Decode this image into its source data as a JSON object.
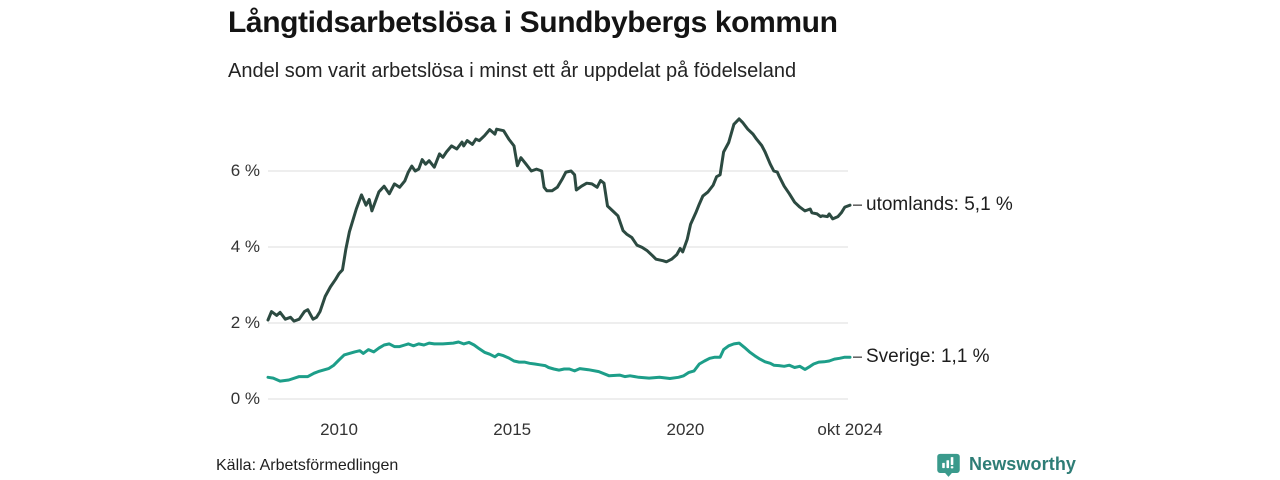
{
  "header": {
    "title": "Långtidsarbetslösa i Sundbybergs kommun",
    "subtitle": "Andel som varit arbetslösa i minst ett år uppdelat på födelseland"
  },
  "footer": {
    "source": "Källa: Arbetsförmedlingen",
    "branding": {
      "name": "Newsworthy",
      "icon": "bar-chart-bubble-icon",
      "icon_color": "#3a9a8c",
      "text_color": "#2e7d76"
    }
  },
  "chart_data": {
    "type": "line",
    "title": "Långtidsarbetslösa i Sundbybergs kommun",
    "subtitle": "Andel som varit arbetslösa i minst ett år uppdelat på födelseland",
    "unit": "%",
    "grid": true,
    "grid_color": "#e4e4e4",
    "xlim": [
      2007.95,
      2024.75
    ],
    "ylim": [
      0,
      7.6
    ],
    "y_ticks": [
      {
        "value": 0,
        "label": "0 %"
      },
      {
        "value": 2,
        "label": "2 %"
      },
      {
        "value": 4,
        "label": "4 %"
      },
      {
        "value": 6,
        "label": "6 %"
      }
    ],
    "x_ticks": [
      {
        "value": 2010,
        "label": "2010"
      },
      {
        "value": 2015,
        "label": "2015"
      },
      {
        "value": 2020,
        "label": "2020"
      },
      {
        "value": 2024.75,
        "label": "okt 2024"
      }
    ],
    "end_dash_color": "#666666",
    "legend_position": "line-end-right",
    "series": [
      {
        "name": "utomlands",
        "end_label": "utomlands: 5,1 %",
        "end_value": "5,1 %",
        "color": "#2c4a41",
        "points": [
          [
            2007.95,
            2.08
          ],
          [
            2008.05,
            2.3
          ],
          [
            2008.2,
            2.2
          ],
          [
            2008.3,
            2.28
          ],
          [
            2008.45,
            2.1
          ],
          [
            2008.6,
            2.15
          ],
          [
            2008.7,
            2.05
          ],
          [
            2008.85,
            2.1
          ],
          [
            2009.0,
            2.3
          ],
          [
            2009.1,
            2.35
          ],
          [
            2009.25,
            2.1
          ],
          [
            2009.35,
            2.15
          ],
          [
            2009.45,
            2.3
          ],
          [
            2009.6,
            2.7
          ],
          [
            2009.75,
            2.95
          ],
          [
            2009.9,
            3.15
          ],
          [
            2010.0,
            3.3
          ],
          [
            2010.1,
            3.4
          ],
          [
            2010.2,
            3.95
          ],
          [
            2010.3,
            4.4
          ],
          [
            2010.5,
            5.0
          ],
          [
            2010.65,
            5.37
          ],
          [
            2010.78,
            5.1
          ],
          [
            2010.87,
            5.25
          ],
          [
            2010.95,
            4.95
          ],
          [
            2011.15,
            5.45
          ],
          [
            2011.3,
            5.6
          ],
          [
            2011.45,
            5.4
          ],
          [
            2011.6,
            5.66
          ],
          [
            2011.75,
            5.57
          ],
          [
            2011.9,
            5.74
          ],
          [
            2012.0,
            5.97
          ],
          [
            2012.1,
            6.13
          ],
          [
            2012.2,
            6.0
          ],
          [
            2012.3,
            6.05
          ],
          [
            2012.4,
            6.3
          ],
          [
            2012.5,
            6.18
          ],
          [
            2012.6,
            6.27
          ],
          [
            2012.75,
            6.1
          ],
          [
            2012.9,
            6.45
          ],
          [
            2013.0,
            6.36
          ],
          [
            2013.1,
            6.5
          ],
          [
            2013.25,
            6.66
          ],
          [
            2013.4,
            6.58
          ],
          [
            2013.55,
            6.76
          ],
          [
            2013.6,
            6.66
          ],
          [
            2013.7,
            6.8
          ],
          [
            2013.85,
            6.7
          ],
          [
            2013.95,
            6.84
          ],
          [
            2014.05,
            6.8
          ],
          [
            2014.2,
            6.93
          ],
          [
            2014.35,
            7.09
          ],
          [
            2014.5,
            6.97
          ],
          [
            2014.55,
            7.1
          ],
          [
            2014.75,
            7.06
          ],
          [
            2014.9,
            6.84
          ],
          [
            2015.05,
            6.66
          ],
          [
            2015.15,
            6.14
          ],
          [
            2015.25,
            6.35
          ],
          [
            2015.4,
            6.18
          ],
          [
            2015.55,
            6.0
          ],
          [
            2015.7,
            6.05
          ],
          [
            2015.85,
            6.0
          ],
          [
            2015.92,
            5.57
          ],
          [
            2016.0,
            5.48
          ],
          [
            2016.15,
            5.48
          ],
          [
            2016.3,
            5.57
          ],
          [
            2016.45,
            5.8
          ],
          [
            2016.55,
            5.97
          ],
          [
            2016.7,
            6.0
          ],
          [
            2016.8,
            5.9
          ],
          [
            2016.85,
            5.5
          ],
          [
            2017.0,
            5.6
          ],
          [
            2017.15,
            5.68
          ],
          [
            2017.3,
            5.66
          ],
          [
            2017.45,
            5.57
          ],
          [
            2017.55,
            5.75
          ],
          [
            2017.65,
            5.68
          ],
          [
            2017.75,
            5.08
          ],
          [
            2017.9,
            4.95
          ],
          [
            2018.05,
            4.82
          ],
          [
            2018.2,
            4.43
          ],
          [
            2018.3,
            4.34
          ],
          [
            2018.45,
            4.25
          ],
          [
            2018.6,
            4.05
          ],
          [
            2018.75,
            3.99
          ],
          [
            2018.9,
            3.9
          ],
          [
            2019.05,
            3.77
          ],
          [
            2019.15,
            3.68
          ],
          [
            2019.35,
            3.64
          ],
          [
            2019.45,
            3.61
          ],
          [
            2019.6,
            3.68
          ],
          [
            2019.75,
            3.8
          ],
          [
            2019.85,
            3.96
          ],
          [
            2019.92,
            3.87
          ],
          [
            2020.05,
            4.2
          ],
          [
            2020.15,
            4.6
          ],
          [
            2020.3,
            4.9
          ],
          [
            2020.4,
            5.13
          ],
          [
            2020.5,
            5.34
          ],
          [
            2020.65,
            5.45
          ],
          [
            2020.8,
            5.63
          ],
          [
            2020.9,
            5.85
          ],
          [
            2021.0,
            5.9
          ],
          [
            2021.1,
            6.5
          ],
          [
            2021.25,
            6.75
          ],
          [
            2021.4,
            7.23
          ],
          [
            2021.55,
            7.37
          ],
          [
            2021.65,
            7.28
          ],
          [
            2021.8,
            7.1
          ],
          [
            2021.95,
            6.97
          ],
          [
            2022.05,
            6.84
          ],
          [
            2022.2,
            6.67
          ],
          [
            2022.3,
            6.5
          ],
          [
            2022.45,
            6.18
          ],
          [
            2022.55,
            6.0
          ],
          [
            2022.65,
            5.97
          ],
          [
            2022.7,
            5.87
          ],
          [
            2022.85,
            5.6
          ],
          [
            2023.0,
            5.4
          ],
          [
            2023.15,
            5.18
          ],
          [
            2023.3,
            5.05
          ],
          [
            2023.45,
            4.95
          ],
          [
            2023.6,
            5.0
          ],
          [
            2023.65,
            4.9
          ],
          [
            2023.8,
            4.87
          ],
          [
            2023.9,
            4.8
          ],
          [
            2023.95,
            4.82
          ],
          [
            2024.1,
            4.8
          ],
          [
            2024.15,
            4.87
          ],
          [
            2024.25,
            4.74
          ],
          [
            2024.4,
            4.8
          ],
          [
            2024.5,
            4.9
          ],
          [
            2024.6,
            5.05
          ],
          [
            2024.75,
            5.1
          ]
        ]
      },
      {
        "name": "Sverige",
        "end_label": "Sverige: 1,1 %",
        "end_value": "1,1 %",
        "color": "#1d9e89",
        "points": [
          [
            2007.95,
            0.57
          ],
          [
            2008.1,
            0.55
          ],
          [
            2008.3,
            0.47
          ],
          [
            2008.55,
            0.5
          ],
          [
            2008.85,
            0.59
          ],
          [
            2009.1,
            0.59
          ],
          [
            2009.28,
            0.68
          ],
          [
            2009.4,
            0.72
          ],
          [
            2009.7,
            0.8
          ],
          [
            2009.85,
            0.89
          ],
          [
            2010.0,
            1.03
          ],
          [
            2010.15,
            1.16
          ],
          [
            2010.3,
            1.2
          ],
          [
            2010.45,
            1.24
          ],
          [
            2010.6,
            1.27
          ],
          [
            2010.7,
            1.2
          ],
          [
            2010.85,
            1.3
          ],
          [
            2011.0,
            1.24
          ],
          [
            2011.15,
            1.34
          ],
          [
            2011.3,
            1.42
          ],
          [
            2011.45,
            1.45
          ],
          [
            2011.6,
            1.38
          ],
          [
            2011.75,
            1.38
          ],
          [
            2011.9,
            1.42
          ],
          [
            2012.0,
            1.45
          ],
          [
            2012.15,
            1.4
          ],
          [
            2012.3,
            1.45
          ],
          [
            2012.45,
            1.42
          ],
          [
            2012.6,
            1.47
          ],
          [
            2012.75,
            1.45
          ],
          [
            2013.0,
            1.45
          ],
          [
            2013.3,
            1.47
          ],
          [
            2013.45,
            1.5
          ],
          [
            2013.6,
            1.45
          ],
          [
            2013.75,
            1.49
          ],
          [
            2013.9,
            1.42
          ],
          [
            2014.05,
            1.32
          ],
          [
            2014.2,
            1.23
          ],
          [
            2014.35,
            1.18
          ],
          [
            2014.5,
            1.11
          ],
          [
            2014.6,
            1.18
          ],
          [
            2014.75,
            1.14
          ],
          [
            2014.9,
            1.08
          ],
          [
            2015.05,
            1.0
          ],
          [
            2015.2,
            0.97
          ],
          [
            2015.35,
            0.97
          ],
          [
            2015.5,
            0.94
          ],
          [
            2015.65,
            0.92
          ],
          [
            2015.8,
            0.9
          ],
          [
            2015.95,
            0.88
          ],
          [
            2016.05,
            0.83
          ],
          [
            2016.2,
            0.79
          ],
          [
            2016.35,
            0.76
          ],
          [
            2016.5,
            0.79
          ],
          [
            2016.65,
            0.79
          ],
          [
            2016.8,
            0.74
          ],
          [
            2016.95,
            0.8
          ],
          [
            2017.2,
            0.77
          ],
          [
            2017.5,
            0.72
          ],
          [
            2017.8,
            0.61
          ],
          [
            2018.1,
            0.63
          ],
          [
            2018.25,
            0.59
          ],
          [
            2018.4,
            0.61
          ],
          [
            2018.65,
            0.57
          ],
          [
            2018.95,
            0.55
          ],
          [
            2019.25,
            0.57
          ],
          [
            2019.55,
            0.54
          ],
          [
            2019.8,
            0.57
          ],
          [
            2019.95,
            0.61
          ],
          [
            2020.1,
            0.7
          ],
          [
            2020.25,
            0.74
          ],
          [
            2020.4,
            0.92
          ],
          [
            2020.55,
            1.0
          ],
          [
            2020.7,
            1.07
          ],
          [
            2020.85,
            1.1
          ],
          [
            2021.0,
            1.1
          ],
          [
            2021.1,
            1.3
          ],
          [
            2021.25,
            1.4
          ],
          [
            2021.4,
            1.45
          ],
          [
            2021.55,
            1.47
          ],
          [
            2021.7,
            1.36
          ],
          [
            2021.85,
            1.24
          ],
          [
            2022.0,
            1.14
          ],
          [
            2022.15,
            1.05
          ],
          [
            2022.3,
            0.98
          ],
          [
            2022.45,
            0.94
          ],
          [
            2022.55,
            0.89
          ],
          [
            2022.7,
            0.88
          ],
          [
            2022.85,
            0.86
          ],
          [
            2023.0,
            0.89
          ],
          [
            2023.15,
            0.83
          ],
          [
            2023.3,
            0.86
          ],
          [
            2023.45,
            0.78
          ],
          [
            2023.6,
            0.86
          ],
          [
            2023.7,
            0.92
          ],
          [
            2023.85,
            0.97
          ],
          [
            2024.0,
            0.98
          ],
          [
            2024.15,
            1.0
          ],
          [
            2024.3,
            1.05
          ],
          [
            2024.45,
            1.07
          ],
          [
            2024.6,
            1.1
          ],
          [
            2024.75,
            1.1
          ]
        ]
      }
    ]
  }
}
